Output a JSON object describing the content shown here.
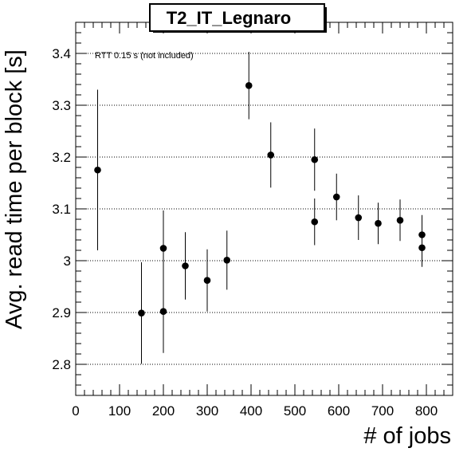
{
  "chart_data": {
    "type": "scatter",
    "title": "T2_IT_Legnaro",
    "xlabel": "# of jobs",
    "ylabel": "Avg. read time per block [s]",
    "annotation": "RTT 0.15 s (not included)",
    "xlim": [
      0,
      860
    ],
    "ylim": [
      2.74,
      3.46
    ],
    "xticks": [
      0,
      100,
      200,
      300,
      400,
      500,
      600,
      700,
      800
    ],
    "yticks": [
      2.8,
      2.9,
      3.0,
      3.1,
      3.2,
      3.3,
      3.4
    ],
    "xtick_labels": [
      "0",
      "100",
      "200",
      "300",
      "400",
      "500",
      "600",
      "700",
      "800"
    ],
    "ytick_labels": [
      "2.8",
      "2.9",
      "3",
      "3.1",
      "3.2",
      "3.3",
      "3.4"
    ],
    "grid": "horizontal dotted at major y ticks",
    "points": [
      {
        "x": 50,
        "y": 3.175,
        "err": 0.155
      },
      {
        "x": 150,
        "y": 2.899,
        "err": 0.098
      },
      {
        "x": 200,
        "y": 2.902,
        "err": 0.08
      },
      {
        "x": 200,
        "y": 3.024,
        "err": 0.073
      },
      {
        "x": 250,
        "y": 2.99,
        "err": 0.065
      },
      {
        "x": 300,
        "y": 2.962,
        "err": 0.06
      },
      {
        "x": 345,
        "y": 3.001,
        "err": 0.057
      },
      {
        "x": 395,
        "y": 3.338,
        "err": 0.065
      },
      {
        "x": 445,
        "y": 3.204,
        "err": 0.063
      },
      {
        "x": 545,
        "y": 3.195,
        "err": 0.06
      },
      {
        "x": 545,
        "y": 3.075,
        "err": 0.045
      },
      {
        "x": 595,
        "y": 3.123,
        "err": 0.045
      },
      {
        "x": 645,
        "y": 3.083,
        "err": 0.043
      },
      {
        "x": 690,
        "y": 3.072,
        "err": 0.04
      },
      {
        "x": 740,
        "y": 3.078,
        "err": 0.04
      },
      {
        "x": 790,
        "y": 3.05,
        "err": 0.038
      },
      {
        "x": 790,
        "y": 3.025,
        "err": 0.037
      }
    ],
    "colors": {
      "marker": "#000000",
      "grid": "#000000",
      "background": "#ffffff"
    }
  }
}
